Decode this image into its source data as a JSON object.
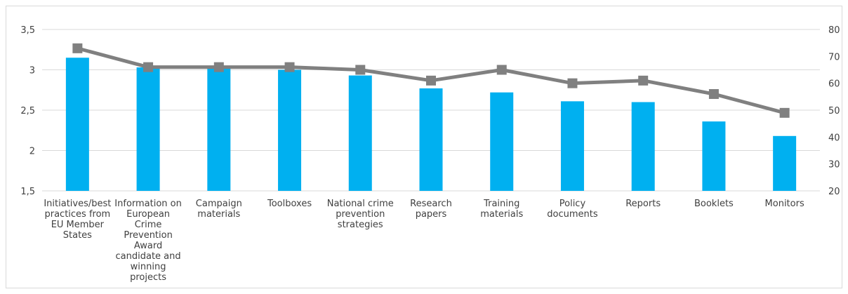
{
  "chart_data": {
    "type": "bar",
    "categories": [
      "Initiatives/best practices from EU Member States",
      "Information on European Crime Prevention Award candidate and winning projects",
      "Campaign materials",
      "Toolboxes",
      "National crime prevention strategies",
      "Research papers",
      "Training materials",
      "Policy documents",
      "Reports",
      "Booklets",
      "Monitors"
    ],
    "category_lines": [
      [
        "Initiatives/best",
        "practices from",
        "EU Member",
        "States"
      ],
      [
        "Information on",
        "European",
        "Crime",
        "Prevention",
        "Award",
        "candidate and",
        "winning",
        "projects"
      ],
      [
        "Campaign",
        "materials"
      ],
      [
        "Toolboxes"
      ],
      [
        "National crime",
        "prevention",
        "strategies"
      ],
      [
        "Research",
        "papers"
      ],
      [
        "Training",
        "materials"
      ],
      [
        "Policy",
        "documents"
      ],
      [
        "Reports"
      ],
      [
        "Booklets"
      ],
      [
        "Monitors"
      ]
    ],
    "series": [
      {
        "type": "bar",
        "axis": "left",
        "color": "#00b0f0",
        "values": [
          3.15,
          3.03,
          3.02,
          3.0,
          2.93,
          2.77,
          2.72,
          2.61,
          2.6,
          2.36,
          2.18
        ]
      },
      {
        "type": "line",
        "axis": "right",
        "color": "#808080",
        "values": [
          73,
          66,
          66,
          66,
          65,
          61,
          65,
          60,
          61,
          56,
          49
        ]
      }
    ],
    "y_left": {
      "min": 1.5,
      "max": 3.5,
      "ticks": [
        "1,5",
        "2",
        "2,5",
        "3",
        "3,5"
      ]
    },
    "y_right": {
      "min": 20,
      "max": 80,
      "ticks": [
        "20",
        "30",
        "40",
        "50",
        "60",
        "70",
        "80"
      ]
    },
    "grid": true,
    "legend": "none"
  }
}
